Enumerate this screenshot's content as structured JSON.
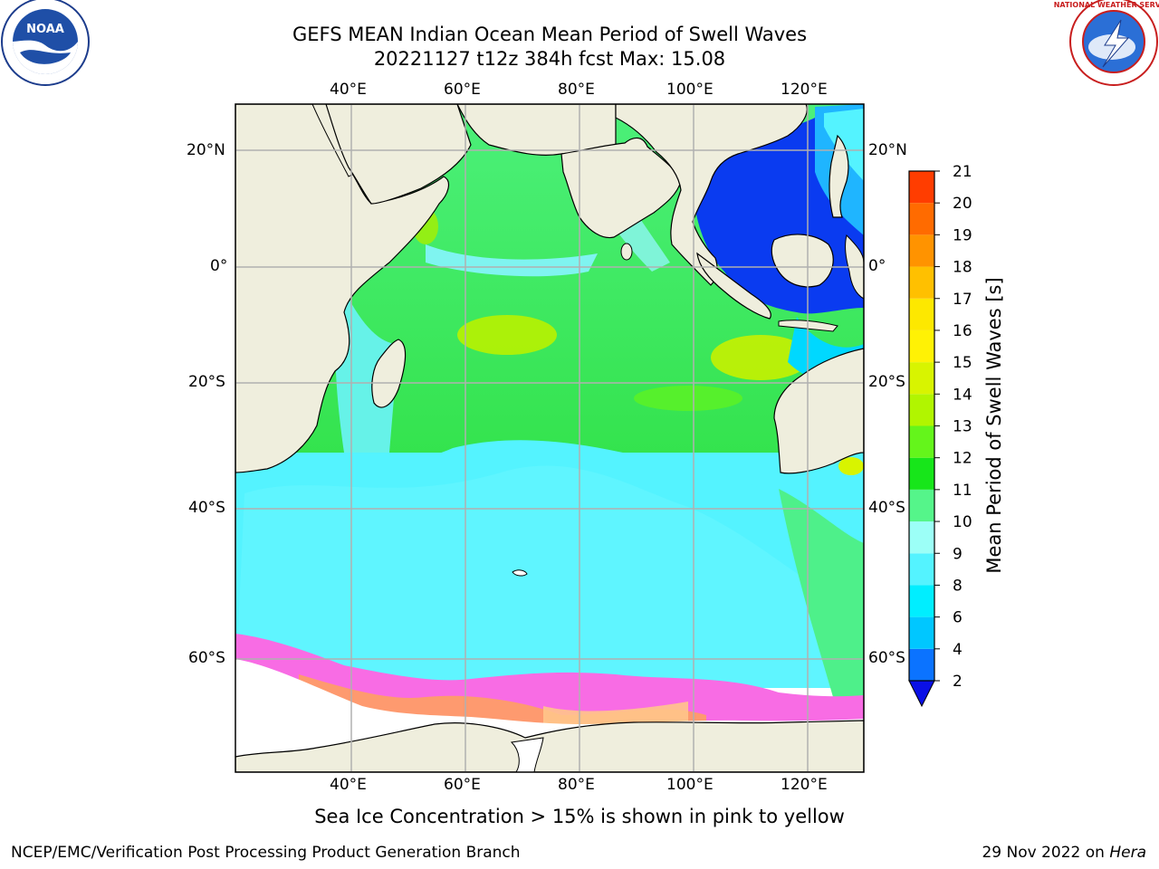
{
  "title_line1": "GEFS MEAN Indian Ocean Mean Period of Swell Waves",
  "title_line2": "20221127 t12z 384h fcst   Max: 15.08",
  "subtitle": "Sea Ice Concentration > 15% is shown in pink to yellow",
  "footer_left": "NCEP/EMC/Verification Post Processing Product Generation Branch",
  "footer_right_date": "29 Nov 2022 on ",
  "footer_right_host": "Hera",
  "logos": {
    "left": "noaa-logo",
    "right": "national-weather-service-logo",
    "left_text": "NOAA",
    "right_text": "NATIONAL WEATHER SERVICE"
  },
  "lon_labels": [
    "40°E",
    "60°E",
    "80°E",
    "100°E",
    "120°E"
  ],
  "lat_labels": [
    "20°N",
    "0°",
    "20°S",
    "40°S",
    "60°S"
  ],
  "colorbar": {
    "label": "Mean Period of Swell Waves [s]",
    "ticks": [
      "2",
      "4",
      "6",
      "8",
      "9",
      "10",
      "11",
      "12",
      "13",
      "14",
      "15",
      "16",
      "17",
      "18",
      "19",
      "20",
      "21"
    ],
    "colors": [
      "#0b73ff",
      "#00c7ff",
      "#00eeff",
      "#54f3ff",
      "#9cfff7",
      "#55f58a",
      "#17e61a",
      "#64f51b",
      "#b1f500",
      "#d8f400",
      "#fff205",
      "#fde800",
      "#ffc000",
      "#ff9300",
      "#ff6b00",
      "#ff3d00",
      "#ff0500"
    ],
    "extend_color": "#0a10e6"
  },
  "colors": {
    "land": "#efeedd",
    "ice": "#ffffff",
    "sea_ice": "#f86ce4",
    "grid": "#b0b0b0"
  }
}
